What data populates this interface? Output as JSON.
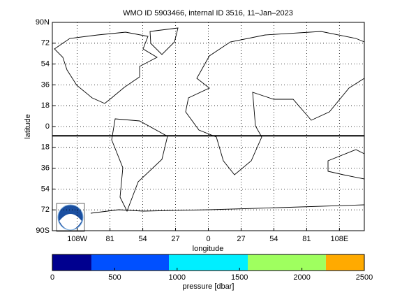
{
  "chart_data": {
    "type": "map",
    "title": "WMO ID 5903466, internal ID 3516, 11–Jan–2023",
    "xlabel": "longitude",
    "ylabel": "latitude",
    "xlim": [
      -128.5,
      128.5
    ],
    "ylim": [
      -90,
      90
    ],
    "xticks": [
      {
        "value": -108,
        "label": "108W"
      },
      {
        "value": -81,
        "label": "81"
      },
      {
        "value": -54,
        "label": "54"
      },
      {
        "value": -27,
        "label": "27"
      },
      0,
      27,
      54,
      81,
      {
        "value": 108,
        "label": "108E"
      }
    ],
    "yticks": [
      {
        "value": 90,
        "label": "90N"
      },
      72,
      54,
      36,
      18,
      0,
      {
        "value": -18,
        "label": "18"
      },
      {
        "value": -36,
        "label": "36"
      },
      {
        "value": -54,
        "label": "54"
      },
      {
        "value": -72,
        "label": "72"
      },
      {
        "value": -90,
        "label": "90S"
      }
    ],
    "grid": true,
    "series": [
      {
        "color": "#000000",
        "x": [
          -128.5,
          128.5
        ],
        "y": [
          -8,
          -8
        ]
      }
    ],
    "colorbar": {
      "label": "pressure [dbar]",
      "lim": [
        0,
        2500
      ],
      "ticks": [
        0,
        500,
        1000,
        1500,
        2000,
        2500
      ],
      "bins": [
        0,
        313,
        934,
        1566,
        2192,
        2500
      ],
      "colors": [
        "#00008f",
        "#0050ff",
        "#00efff",
        "#9fff5f",
        "#ffaa00"
      ]
    }
  }
}
